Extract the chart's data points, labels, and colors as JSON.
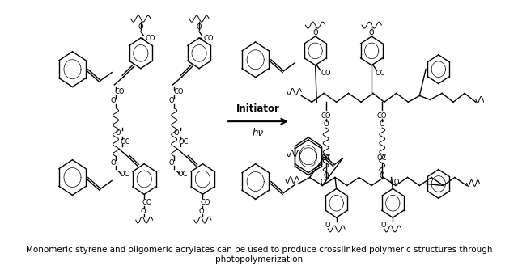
{
  "caption_line1": "Monomeric styrene and oligomeric acrylates can be used to produce crosslinked polymeric structures through",
  "caption_line2": "photopolymerization",
  "arrow_label_top": "Initiator",
  "arrow_label_bottom": "hν",
  "background_color": "#ffffff",
  "caption_fontsize": 7.5,
  "figsize": [
    6.4,
    3.29
  ],
  "dpi": 100
}
